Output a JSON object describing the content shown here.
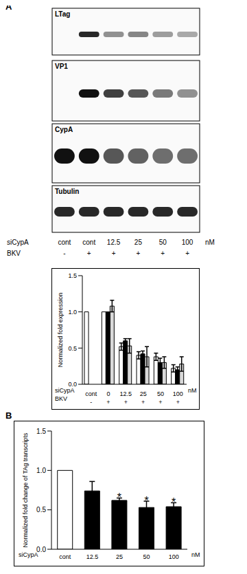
{
  "panels": [
    "A",
    "B"
  ],
  "blot": {
    "proteins": [
      "LTag",
      "VP1",
      "CypA",
      "Tubulin"
    ],
    "lane_rows": [
      {
        "label": "siCypA",
        "values": [
          "cont",
          "cont",
          "12.5",
          "25",
          "50",
          "100"
        ],
        "unit": "nM"
      },
      {
        "label": "BKV",
        "values": [
          "-",
          "+",
          "+",
          "+",
          "+",
          "+"
        ]
      }
    ]
  },
  "chart_data": [
    {
      "type": "bar",
      "y_label": "Normalized fold expression",
      "x_label": "siCypA",
      "x_unit": "nM",
      "categories": [
        "cont",
        "0",
        "12.5",
        "25",
        "50",
        "100"
      ],
      "second_row": {
        "label": "BKV",
        "values": [
          "-",
          "+",
          "+",
          "+",
          "+",
          "+"
        ]
      },
      "series": [
        {
          "color": "#ffffff",
          "values": [
            1,
            1,
            0.52,
            0.4,
            0.38,
            0.22
          ],
          "errors": [
            null,
            null,
            0.05,
            0.05,
            0.05,
            0.05
          ]
        },
        {
          "color": "#000000",
          "values": [
            null,
            1,
            0.6,
            0.42,
            0.3,
            0.2
          ],
          "errors": [
            null,
            null,
            0.03,
            0.04,
            0.06,
            0.04
          ]
        },
        {
          "color": "#d9d9d9",
          "values": [
            null,
            1.08,
            0.53,
            0.38,
            0.3,
            0.28
          ],
          "errors": [
            null,
            0.08,
            0.1,
            0.14,
            0.08,
            0.1
          ]
        }
      ],
      "ylim": [
        0,
        1.5
      ],
      "yticks": [
        {
          "value": 0,
          "label": "0.0"
        },
        {
          "value": 0.5,
          "label": "0.5"
        },
        {
          "value": 1,
          "label": "1.0"
        },
        {
          "value": 1.5,
          "label": "1.5"
        }
      ],
      "grid": false
    },
    {
      "type": "bar",
      "y_label": "Normalized fold change of TAg transcripts",
      "x_label": "siCypA",
      "x_unit": "nM",
      "categories": [
        "cont",
        "12.5",
        "25",
        "50",
        "100"
      ],
      "values": [
        1,
        0.74,
        0.62,
        0.53,
        0.54
      ],
      "errors": [
        null,
        0.12,
        0.03,
        0.08,
        0.05
      ],
      "colors": [
        "#ffffff",
        "#000000",
        "#000000",
        "#000000",
        "#000000"
      ],
      "annotations": [
        {
          "category": "25",
          "text": "*"
        },
        {
          "category": "50",
          "text": "*"
        },
        {
          "category": "100",
          "text": "*"
        }
      ],
      "ylim": [
        0,
        1.5
      ],
      "yticks": [
        {
          "value": 0,
          "label": "0.0"
        },
        {
          "value": 0.5,
          "label": "0.5"
        },
        {
          "value": 1,
          "label": "1.0"
        },
        {
          "value": 1.5,
          "label": "1.5"
        }
      ],
      "grid": false
    }
  ]
}
